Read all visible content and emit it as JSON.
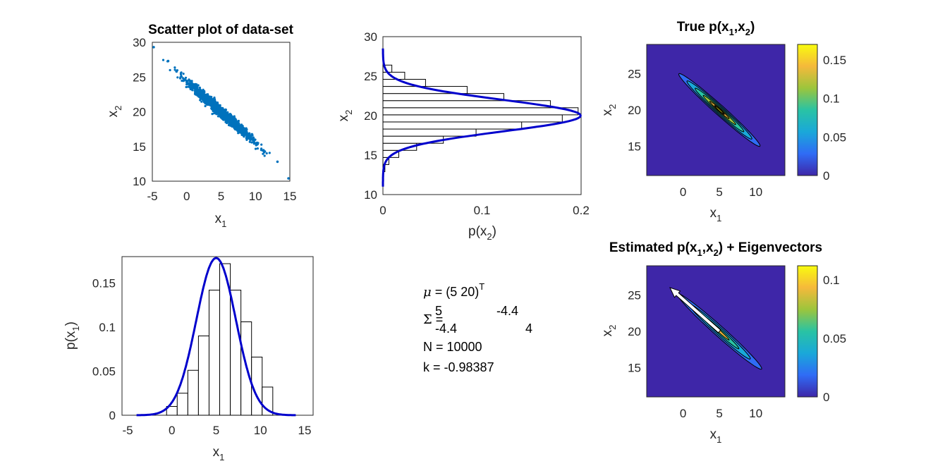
{
  "figure": {
    "scatter": {
      "title": "Scatter plot of data-set",
      "xlabel": {
        "main": "x",
        "sub": "1"
      },
      "ylabel": {
        "main": "x",
        "sub": "2"
      },
      "xticks": [
        "-5",
        "0",
        "5",
        "10",
        "15"
      ],
      "yticks": [
        "10",
        "15",
        "20",
        "25",
        "30"
      ]
    },
    "hist_x2": {
      "title": "",
      "xlabel": {
        "pre": "p(x",
        "sub": "2",
        "post": ")"
      },
      "ylabel": {
        "main": "x",
        "sub": "2"
      },
      "xticks": [
        "0",
        "0.1",
        "0.2"
      ],
      "yticks": [
        "10",
        "15",
        "20",
        "25",
        "30"
      ]
    },
    "true_pdf": {
      "title": {
        "pre": "True p(x",
        "sub1": "1",
        "mid": ",x",
        "sub2": "2",
        "post": ")"
      },
      "xlabel": {
        "main": "x",
        "sub": "1"
      },
      "ylabel": {
        "main": "x",
        "sub": "2"
      },
      "xticks": [
        "0",
        "5",
        "10"
      ],
      "yticks": [
        "15",
        "20",
        "25"
      ],
      "cbar_ticks": [
        "0",
        "0.05",
        "0.1",
        "0.15"
      ]
    },
    "hist_x1": {
      "title": "",
      "xlabel": {
        "main": "x",
        "sub": "1"
      },
      "ylabel": {
        "pre": "p(x",
        "sub": "1",
        "post": ")"
      },
      "xticks": [
        "-5",
        "0",
        "5",
        "10",
        "15"
      ],
      "yticks": [
        "0",
        "0.05",
        "0.1",
        "0.15"
      ]
    },
    "est_pdf": {
      "title": {
        "pre": "Estimated p(x",
        "sub1": "1",
        "mid": ",x",
        "sub2": "2",
        "post": ") + Eigenvectors"
      },
      "xlabel": {
        "main": "x",
        "sub": "1"
      },
      "ylabel": {
        "main": "x",
        "sub": "2"
      },
      "xticks": [
        "0",
        "5",
        "10"
      ],
      "yticks": [
        "15",
        "20",
        "25"
      ],
      "cbar_ticks": [
        "0",
        "0.05",
        "0.1"
      ]
    },
    "info": {
      "mu": {
        "sym": "μ",
        "text": " = (5  20)",
        "sup": "T"
      },
      "sigma": {
        "sym": "Σ",
        "eq": " = ",
        "a11": "5",
        "a12": "-4.4",
        "a21": "-4.4",
        "a22": "4"
      },
      "n_line": "N = 10000",
      "k_line": "k = -0.98387"
    }
  },
  "colors": {
    "scatter_marker": "#0072BD",
    "fit_line": "#0000CC",
    "background_contour": "#3E26A8",
    "colormap": [
      "#3E26A8",
      "#2F6CF5",
      "#1AA8D9",
      "#29C3A4",
      "#9CC53C",
      "#F5B93B",
      "#F9FB0E"
    ]
  },
  "chart_data": [
    {
      "type": "scatter",
      "panel": "scatter",
      "title": "Scatter plot of data-set",
      "xlabel": "x1",
      "ylabel": "x2",
      "xlim": [
        -5,
        15
      ],
      "ylim": [
        10,
        30
      ],
      "n_points": 10000,
      "mean": [
        5,
        20
      ],
      "cov": [
        [
          5,
          -4.4
        ],
        [
          -4.4,
          4
        ]
      ],
      "extreme_points": [
        [
          -4.8,
          29.3
        ],
        [
          -2.7,
          27.3
        ],
        [
          13.2,
          12.8
        ],
        [
          14.8,
          10.4
        ]
      ]
    },
    {
      "type": "bar",
      "orientation": "horizontal",
      "panel": "hist_x2",
      "xlabel": "p(x2)",
      "ylabel": "x2",
      "xlim": [
        0,
        0.2
      ],
      "ylim": [
        10,
        30
      ],
      "bin_edges": [
        12.9,
        13.8,
        14.7,
        15.6,
        16.5,
        17.4,
        18.3,
        19.2,
        20.1,
        21.0,
        21.9,
        22.8,
        23.7,
        24.6,
        25.5,
        26.4
      ],
      "values": [
        0.002,
        0.006,
        0.016,
        0.034,
        0.061,
        0.094,
        0.14,
        0.181,
        0.197,
        0.169,
        0.122,
        0.085,
        0.043,
        0.022,
        0.009
      ],
      "fit_curve": {
        "type": "normal_pdf",
        "mean": 20,
        "variance": 4
      }
    },
    {
      "type": "heatmap",
      "panel": "true_pdf",
      "title": "True p(x1,x2)",
      "xlabel": "x1",
      "ylabel": "x2",
      "xlim": [
        -5,
        14
      ],
      "ylim": [
        11,
        29
      ],
      "mean": [
        5,
        20
      ],
      "cov": [
        [
          5,
          -4.4
        ],
        [
          -4.4,
          4
        ]
      ],
      "colorbar": [
        0,
        0.17
      ]
    },
    {
      "type": "bar",
      "panel": "hist_x1",
      "xlabel": "x1",
      "ylabel": "p(x1)",
      "xlim": [
        -5,
        15
      ],
      "ylim": [
        0,
        0.18
      ],
      "bin_edges": [
        -0.6,
        0.6,
        1.8,
        3.0,
        4.2,
        5.4,
        6.6,
        7.8,
        9.0,
        10.2,
        11.4
      ],
      "values": [
        0.01,
        0.025,
        0.051,
        0.09,
        0.142,
        0.172,
        0.142,
        0.106,
        0.066,
        0.032
      ],
      "fit_curve": {
        "type": "normal_pdf",
        "mean": 5,
        "variance": 5,
        "x_range": [
          -4,
          14
        ]
      }
    },
    {
      "type": "heatmap",
      "panel": "est_pdf",
      "title": "Estimated p(x1,x2) + Eigenvectors",
      "xlabel": "x1",
      "ylabel": "x2",
      "xlim": [
        -5,
        14
      ],
      "ylim": [
        11,
        29
      ],
      "mean": [
        5,
        20
      ],
      "cov": [
        [
          5,
          -4.4
        ],
        [
          -4.4,
          4
        ]
      ],
      "colorbar": [
        0,
        0.112
      ],
      "eigenvector_arrow": {
        "from": [
          5,
          20
        ],
        "to": [
          -1.8,
          26
        ]
      }
    }
  ]
}
